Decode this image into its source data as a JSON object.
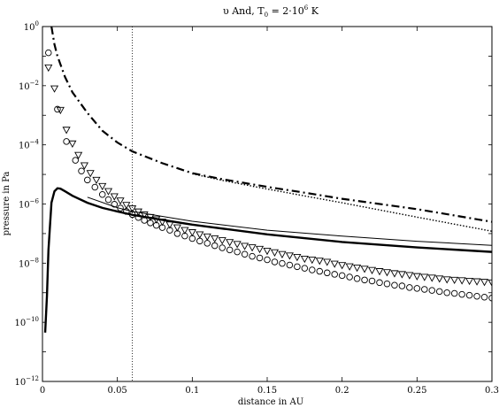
{
  "chart_data": {
    "type": "line",
    "title": {
      "prefix": "υ And, T",
      "sub": "0",
      "mid": " = 2·10",
      "sup": "6",
      "suffix": " K"
    },
    "xlabel": "distance in AU",
    "ylabel": "pressure in Pa",
    "xlim": [
      0,
      0.3
    ],
    "ylim_log10": [
      -12,
      0
    ],
    "y_scale": "log",
    "grid": false,
    "legend": "none",
    "x_ticks": [
      {
        "value": 0,
        "label": "0"
      },
      {
        "value": 0.05,
        "label": "0.05"
      },
      {
        "value": 0.1,
        "label": "0.1"
      },
      {
        "value": 0.15,
        "label": "0.15"
      },
      {
        "value": 0.2,
        "label": "0.2"
      },
      {
        "value": 0.25,
        "label": "0.25"
      },
      {
        "value": 0.3,
        "label": "0.3"
      }
    ],
    "y_ticks": [
      {
        "exp": 0,
        "base": "10",
        "sup": "0"
      },
      {
        "exp": -2,
        "base": "10",
        "sup": "−2"
      },
      {
        "exp": -4,
        "base": "10",
        "sup": "−4"
      },
      {
        "exp": -6,
        "base": "10",
        "sup": "−6"
      },
      {
        "exp": -8,
        "base": "10",
        "sup": "−8"
      },
      {
        "exp": -10,
        "base": "10",
        "sup": "−10"
      },
      {
        "exp": -12,
        "base": "10",
        "sup": "−12"
      }
    ],
    "vline_x": 0.06,
    "series": [
      {
        "style": "dashed-thick",
        "x": [
          0.006,
          0.008,
          0.01,
          0.015,
          0.02,
          0.03,
          0.04,
          0.05,
          0.06,
          0.08,
          0.1,
          0.12,
          0.15,
          0.18,
          0.2,
          0.25,
          0.3
        ],
        "y": [
          1.0,
          0.25,
          0.1,
          0.02,
          0.006,
          0.0012,
          0.0003,
          0.00012,
          6e-05,
          2.4e-05,
          1.1e-05,
          6.9e-06,
          3.8e-06,
          2.2e-06,
          1.5e-06,
          6.7e-07,
          2.5e-07
        ]
      },
      {
        "style": "dotted",
        "x": [
          0.1,
          0.12,
          0.15,
          0.2,
          0.25,
          0.3
        ],
        "y": [
          1.05e-05,
          6.3e-06,
          3.2e-06,
          1.1e-06,
          3.6e-07,
          1.2e-07
        ]
      },
      {
        "style": "solid-thin",
        "x": [
          0.03,
          0.05,
          0.06,
          0.08,
          0.1,
          0.15,
          0.2,
          0.25,
          0.3
        ],
        "y": [
          1.7e-06,
          7.5e-07,
          5.6e-07,
          3.8e-07,
          2.6e-07,
          1.3e-07,
          8.2e-08,
          5.5e-08,
          4e-08
        ]
      },
      {
        "style": "solid-thick",
        "x": [
          0.0018,
          0.003,
          0.004,
          0.006,
          0.008,
          0.01,
          0.012,
          0.015,
          0.02,
          0.03,
          0.04,
          0.05,
          0.06,
          0.08,
          0.1,
          0.15,
          0.2,
          0.25,
          0.3
        ],
        "y": [
          4.5e-11,
          7.9e-10,
          2.8e-08,
          1.1e-06,
          2.7e-06,
          3.4e-06,
          3.3e-06,
          2.7e-06,
          1.9e-06,
          1.1e-06,
          7.4e-07,
          5.6e-07,
          4.3e-07,
          2.9e-07,
          2e-07,
          9.4e-08,
          5.2e-08,
          3.4e-08,
          2.4e-08
        ]
      },
      {
        "style": "triangle-markers",
        "x": [
          0.004,
          0.008,
          0.012,
          0.016,
          0.02,
          0.024,
          0.028,
          0.032,
          0.036,
          0.04,
          0.044,
          0.048,
          0.052,
          0.056,
          0.06,
          0.064,
          0.068,
          0.072,
          0.076,
          0.08,
          0.085,
          0.09,
          0.095,
          0.1,
          0.105,
          0.11,
          0.115,
          0.12,
          0.125,
          0.13,
          0.135,
          0.14,
          0.145,
          0.15,
          0.155,
          0.16,
          0.165,
          0.17,
          0.175,
          0.18,
          0.185,
          0.19,
          0.195,
          0.2,
          0.205,
          0.21,
          0.215,
          0.22,
          0.225,
          0.23,
          0.235,
          0.24,
          0.245,
          0.25,
          0.255,
          0.26,
          0.265,
          0.27,
          0.275,
          0.28,
          0.285,
          0.29,
          0.295,
          0.3
        ],
        "y": [
          0.041,
          0.008,
          0.0015,
          0.00032,
          0.00011,
          4.5e-05,
          2e-05,
          1.1e-05,
          6.5e-06,
          4e-06,
          2.7e-06,
          1.8e-06,
          1.3e-06,
          9.2e-07,
          7e-07,
          5.5e-07,
          4.4e-07,
          3.6e-07,
          3e-07,
          2.5e-07,
          2e-07,
          1.6e-07,
          1.3e-07,
          1.1e-07,
          9.3e-08,
          7.9e-08,
          6.8e-08,
          5.9e-08,
          5.1e-08,
          4.4e-08,
          3.8e-08,
          3.4e-08,
          3e-08,
          2.6e-08,
          2.3e-08,
          2e-08,
          1.8e-08,
          1.6e-08,
          1.4e-08,
          1.3e-08,
          1.2e-08,
          1.1e-08,
          9.5e-09,
          8.5e-09,
          7.7e-09,
          7e-09,
          6.4e-09,
          5.8e-09,
          5.3e-09,
          4.9e-09,
          4.5e-09,
          4.2e-09,
          3.9e-09,
          3.6e-09,
          3.4e-09,
          3.2e-09,
          3e-09,
          2.8e-09,
          2.7e-09,
          2.6e-09,
          2.5e-09,
          2.4e-09,
          2.3e-09,
          2.2e-09
        ]
      },
      {
        "style": "circle-markers",
        "x": [
          0.004,
          0.01,
          0.016,
          0.022,
          0.026,
          0.03,
          0.035,
          0.04,
          0.044,
          0.048,
          0.052,
          0.056,
          0.06,
          0.064,
          0.068,
          0.072,
          0.076,
          0.08,
          0.085,
          0.09,
          0.095,
          0.1,
          0.105,
          0.11,
          0.115,
          0.12,
          0.125,
          0.13,
          0.135,
          0.14,
          0.145,
          0.15,
          0.155,
          0.16,
          0.165,
          0.17,
          0.175,
          0.18,
          0.185,
          0.19,
          0.195,
          0.2,
          0.205,
          0.21,
          0.215,
          0.22,
          0.225,
          0.23,
          0.235,
          0.24,
          0.245,
          0.25,
          0.255,
          0.26,
          0.265,
          0.27,
          0.275,
          0.28,
          0.285,
          0.29,
          0.295,
          0.3
        ],
        "y": [
          0.13,
          0.0016,
          0.00013,
          3e-05,
          1.3e-05,
          6.5e-06,
          3.7e-06,
          2.1e-06,
          1.4e-06,
          9.8e-07,
          7.3e-07,
          5.6e-07,
          4.4e-07,
          3.5e-07,
          2.8e-07,
          2.3e-07,
          1.9e-07,
          1.6e-07,
          1.3e-07,
          1e-07,
          8.3e-08,
          6.8e-08,
          5.6e-08,
          4.7e-08,
          3.9e-08,
          3.3e-08,
          2.8e-08,
          2.4e-08,
          2e-08,
          1.7e-08,
          1.5e-08,
          1.3e-08,
          1.1e-08,
          9.8e-09,
          8.6e-09,
          7.6e-09,
          6.7e-09,
          5.9e-09,
          5.3e-09,
          4.7e-09,
          4.2e-09,
          3.8e-09,
          3.4e-09,
          3e-09,
          2.7e-09,
          2.5e-09,
          2.2e-09,
          2e-09,
          1.8e-09,
          1.7e-09,
          1.5e-09,
          1.4e-09,
          1.3e-09,
          1.2e-09,
          1.1e-09,
          1e-09,
          9.5e-10,
          8.8e-10,
          8.2e-10,
          7.6e-10,
          7.1e-10,
          6.6e-10
        ]
      }
    ]
  }
}
